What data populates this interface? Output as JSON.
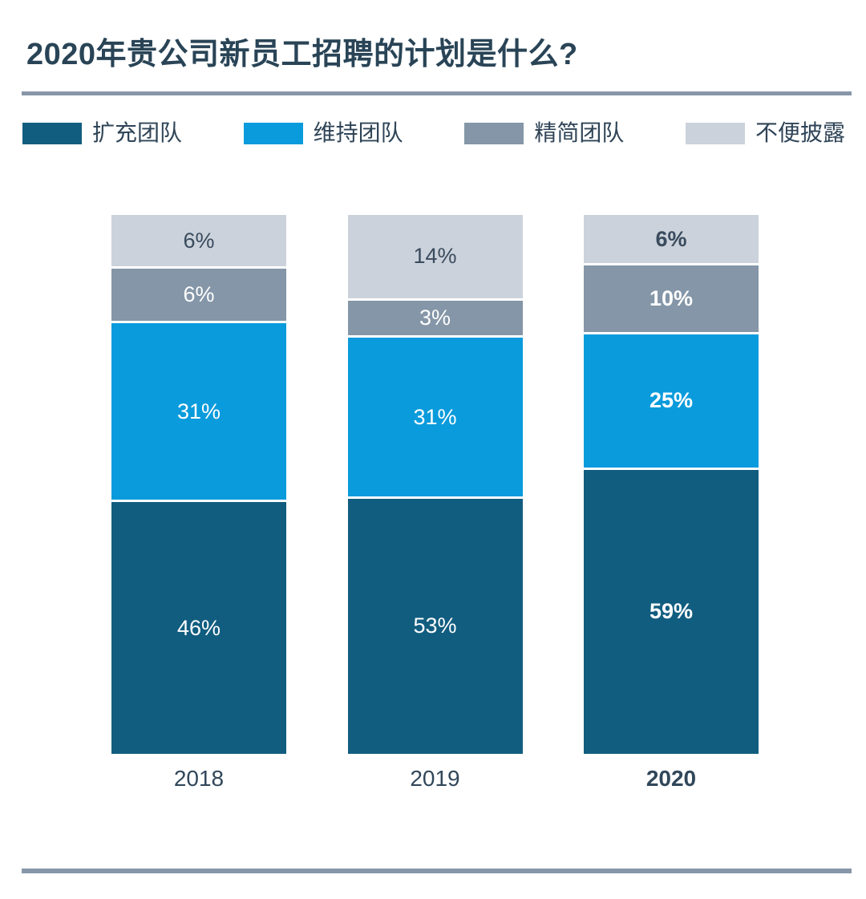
{
  "title": "2020年贵公司新员工招聘的计划是什么?",
  "colors": {
    "background": "#FFFFFF",
    "title_text": "#294456",
    "divider": "#8796A8",
    "axis_label": "#31475A",
    "expand": "#115D80",
    "maintain": "#0A9BDC",
    "streamline": "#8496A7",
    "disclose": "#CBD2DB"
  },
  "legend": {
    "items": [
      {
        "key": "expand",
        "label": "扩充团队",
        "color": "#115D80"
      },
      {
        "key": "maintain",
        "label": "维持团队",
        "color": "#0A9BDC"
      },
      {
        "key": "streamline",
        "label": "精简团队",
        "color": "#8496A7"
      },
      {
        "key": "disclose",
        "label": "不便披露",
        "color": "#CBD2DB"
      }
    ]
  },
  "chart_data": {
    "type": "bar",
    "stacked": true,
    "normalized_equal_bar_height": true,
    "title": "2020年贵公司新员工招聘的计划是什么?",
    "legend_position": "top",
    "value_suffix": "%",
    "categories": [
      {
        "label": "2018",
        "bold": false
      },
      {
        "label": "2019",
        "bold": false
      },
      {
        "label": "2020",
        "bold": true
      }
    ],
    "series": [
      {
        "name": "扩充团队",
        "key": "expand",
        "color": "#115D80",
        "label_color": "#FFFFFF",
        "values": [
          46,
          53,
          59
        ],
        "labels": [
          "46%",
          "53%",
          "59%"
        ]
      },
      {
        "name": "维持团队",
        "key": "maintain",
        "color": "#0A9BDC",
        "label_color": "#FFFFFF",
        "values": [
          31,
          31,
          25
        ],
        "labels": [
          "31%",
          "31%",
          "25%"
        ]
      },
      {
        "name": "精简团队",
        "key": "streamline",
        "color": "#8496A7",
        "label_color": "#FFFFFF",
        "values": [
          6,
          3,
          10
        ],
        "labels": [
          "6%",
          "3%",
          "10%"
        ]
      },
      {
        "name": "不便披露",
        "key": "disclose",
        "color": "#CBD2DB",
        "label_color": "#3A4B5E",
        "values": [
          6,
          14,
          6
        ],
        "labels": [
          "6%",
          "14%",
          "6%"
        ]
      }
    ],
    "stack_order_top_to_bottom": [
      "disclose",
      "streamline",
      "maintain",
      "expand"
    ]
  }
}
